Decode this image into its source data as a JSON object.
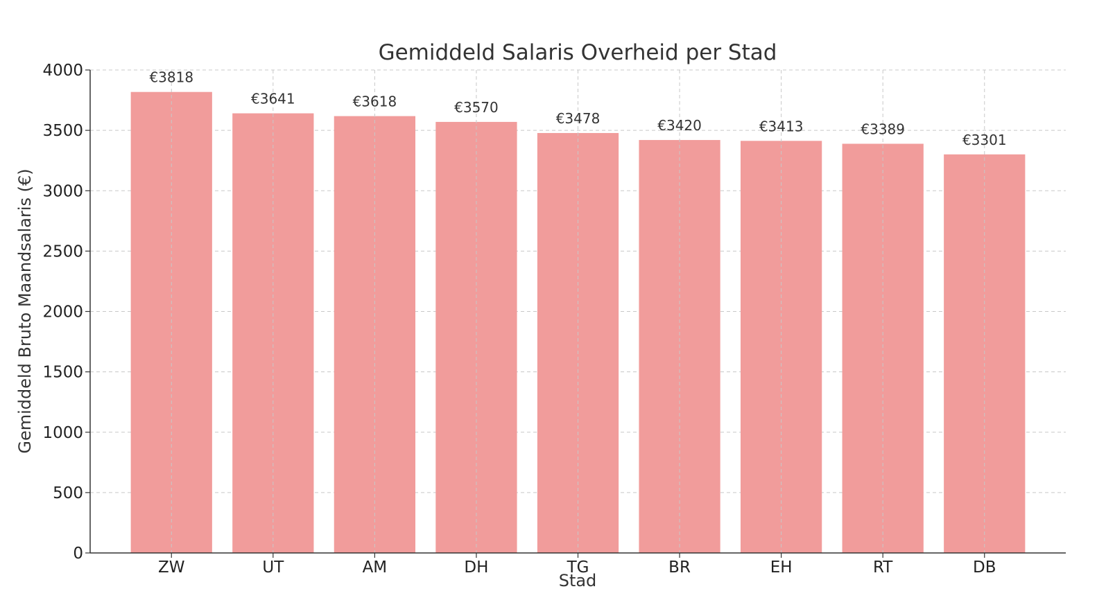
{
  "chart_data": {
    "type": "bar",
    "title": "Gemiddeld Salaris Overheid per Stad",
    "xlabel": "Stad",
    "ylabel": "Gemiddeld Bruto Maandsalaris (€)",
    "categories": [
      "ZW",
      "UT",
      "AM",
      "DH",
      "TG",
      "BR",
      "EH",
      "RT",
      "DB"
    ],
    "values": [
      3818,
      3641,
      3618,
      3570,
      3478,
      3420,
      3413,
      3389,
      3301
    ],
    "value_labels": [
      "€3818",
      "€3641",
      "€3618",
      "€3570",
      "€3478",
      "€3420",
      "€3413",
      "€3389",
      "€3301"
    ],
    "ylim": [
      0,
      4000
    ],
    "yticks": [
      0,
      500,
      1000,
      1500,
      2000,
      2500,
      3000,
      3500,
      4000
    ],
    "grid": true,
    "bar_color": "#f19c9b"
  }
}
